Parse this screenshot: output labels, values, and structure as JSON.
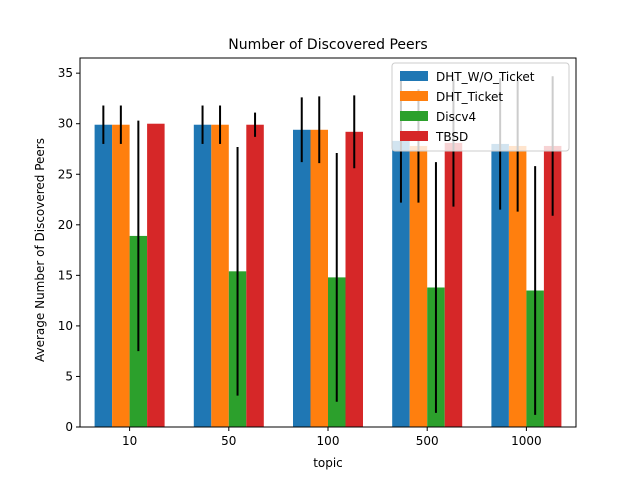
{
  "chart_data": {
    "type": "bar",
    "title": "Number of Discovered Peers",
    "xlabel": "topic",
    "ylabel": "Average Number of Discovered Peers",
    "categories": [
      "10",
      "50",
      "100",
      "500",
      "1000"
    ],
    "ylim": [
      0,
      36.5
    ],
    "yticks": [
      0,
      5,
      10,
      15,
      20,
      25,
      30,
      35
    ],
    "legend_position": "top-right",
    "grid": false,
    "series": [
      {
        "name": "DHT_W/O_Ticket",
        "color": "#1f77b4",
        "values": [
          29.9,
          29.9,
          29.4,
          28.3,
          28.0
        ],
        "errors": [
          1.9,
          1.9,
          3.2,
          6.1,
          6.5
        ]
      },
      {
        "name": "DHT_Ticket",
        "color": "#ff7f0e",
        "values": [
          29.9,
          29.9,
          29.4,
          27.8,
          27.8
        ],
        "errors": [
          1.9,
          1.9,
          3.3,
          5.6,
          6.5
        ]
      },
      {
        "name": "Discv4",
        "color": "#2ca02c",
        "values": [
          18.9,
          15.4,
          14.8,
          13.8,
          13.5
        ],
        "errors": [
          11.4,
          12.3,
          12.3,
          12.4,
          12.3
        ]
      },
      {
        "name": "TBSD",
        "color": "#d62728",
        "values": [
          30.0,
          29.9,
          29.2,
          28.1,
          27.8
        ],
        "errors": [
          0.0,
          1.2,
          3.6,
          6.3,
          6.9
        ]
      }
    ]
  }
}
